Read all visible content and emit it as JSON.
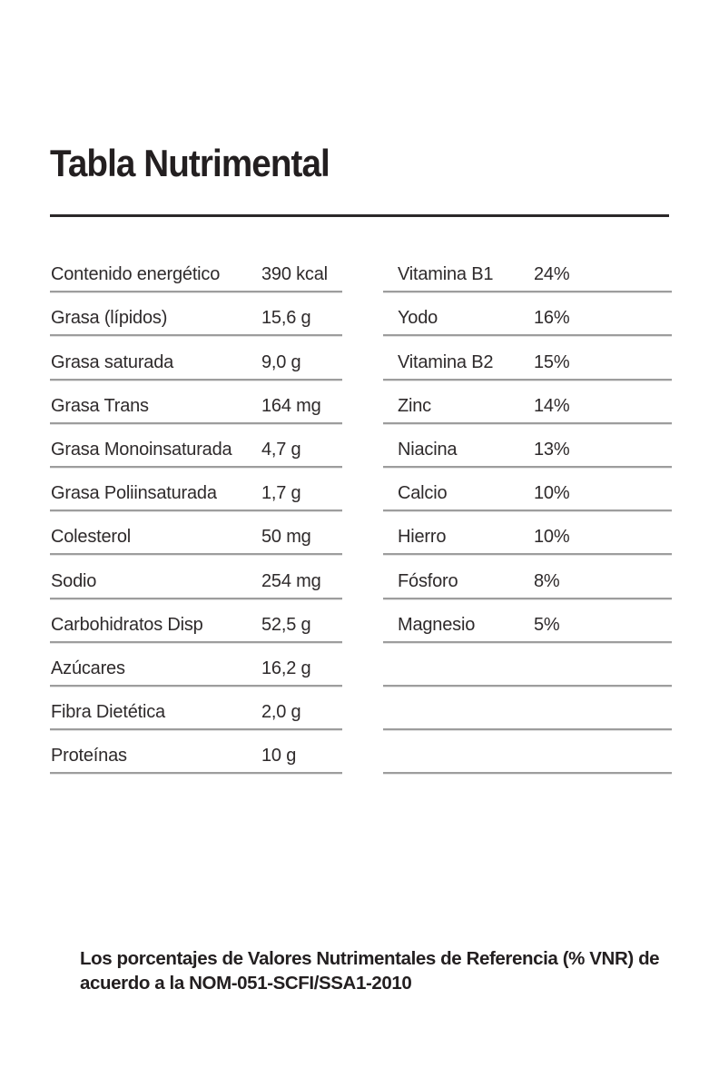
{
  "title": "Tabla Nutrimental",
  "nutrients_table": {
    "rows": [
      {
        "label": "Contenido energético",
        "value": "390 kcal"
      },
      {
        "label": "Grasa (lípidos)",
        "value": "15,6 g"
      },
      {
        "label": "Grasa saturada",
        "value": "9,0 g"
      },
      {
        "label": "Grasa Trans",
        "value": "164 mg"
      },
      {
        "label": "Grasa Monoinsaturada",
        "value": "4,7 g"
      },
      {
        "label": "Grasa Poliinsaturada",
        "value": "1,7 g"
      },
      {
        "label": "Colesterol",
        "value": "50 mg"
      },
      {
        "label": "Sodio",
        "value": "254 mg"
      },
      {
        "label": "Carbohidratos Disp",
        "value": "52,5 g"
      },
      {
        "label": "Azúcares",
        "value": "16,2 g"
      },
      {
        "label": "Fibra Dietética",
        "value": "2,0 g"
      },
      {
        "label": "Proteínas",
        "value": "10 g"
      }
    ]
  },
  "vitamins_table": {
    "rows": [
      {
        "label": "Vitamina B1",
        "value": "24%"
      },
      {
        "label": "Yodo",
        "value": "16%"
      },
      {
        "label": "Vitamina B2",
        "value": "15%"
      },
      {
        "label": "Zinc",
        "value": "14%"
      },
      {
        "label": "Niacina",
        "value": "13%"
      },
      {
        "label": "Calcio",
        "value": "10%"
      },
      {
        "label": "Hierro",
        "value": "10%"
      },
      {
        "label": "Fósforo",
        "value": "8%"
      },
      {
        "label": "Magnesio",
        "value": "5%"
      },
      {
        "label": "",
        "value": ""
      },
      {
        "label": "",
        "value": ""
      },
      {
        "label": "",
        "value": ""
      }
    ]
  },
  "footer": {
    "line1": "Los porcentajes de Valores Nutrimentales de Referencia (% VNR) de",
    "line2": "acuerdo a la NOM-051-SCFI/SSA1-2010"
  },
  "colors": {
    "background": "#ffffff",
    "title_text": "#231f20",
    "body_text": "#2e2a2b",
    "row_line": "#9d9d9d",
    "title_rule": "#2b2829"
  }
}
